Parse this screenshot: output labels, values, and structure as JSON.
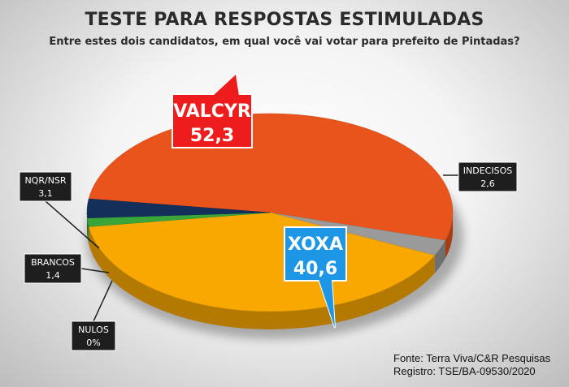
{
  "chart_data": {
    "type": "pie",
    "title": "TESTE PARA RESPOSTAS ESTIMULADAS",
    "subtitle": "Entre estes dois candidatos, em qual você vai votar para prefeito de Pintadas?",
    "slices": [
      {
        "label": "VALCYR",
        "value_text": "52,3",
        "value": 52.3,
        "color": "#e8541b"
      },
      {
        "label": "INDECISOS",
        "value_text": "2,6",
        "value": 2.6,
        "color": "#9a9a9a"
      },
      {
        "label": "XOXA",
        "value_text": "40,6",
        "value": 40.6,
        "color": "#f8a800"
      },
      {
        "label": "NULOS",
        "value_text": "0%",
        "value": 0,
        "color": "#2a8a2a"
      },
      {
        "label": "BRANCOS",
        "value_text": "1,4",
        "value": 1.4,
        "color": "#3aa63a"
      },
      {
        "label": "NQR/NSR",
        "value_text": "3,1",
        "value": 3.1,
        "color": "#14305a"
      }
    ]
  },
  "source": {
    "line1": "Fonte: Terra Viva/C&R Pesquisas",
    "line2": "Registro: TSE/BA-09530/2020"
  }
}
